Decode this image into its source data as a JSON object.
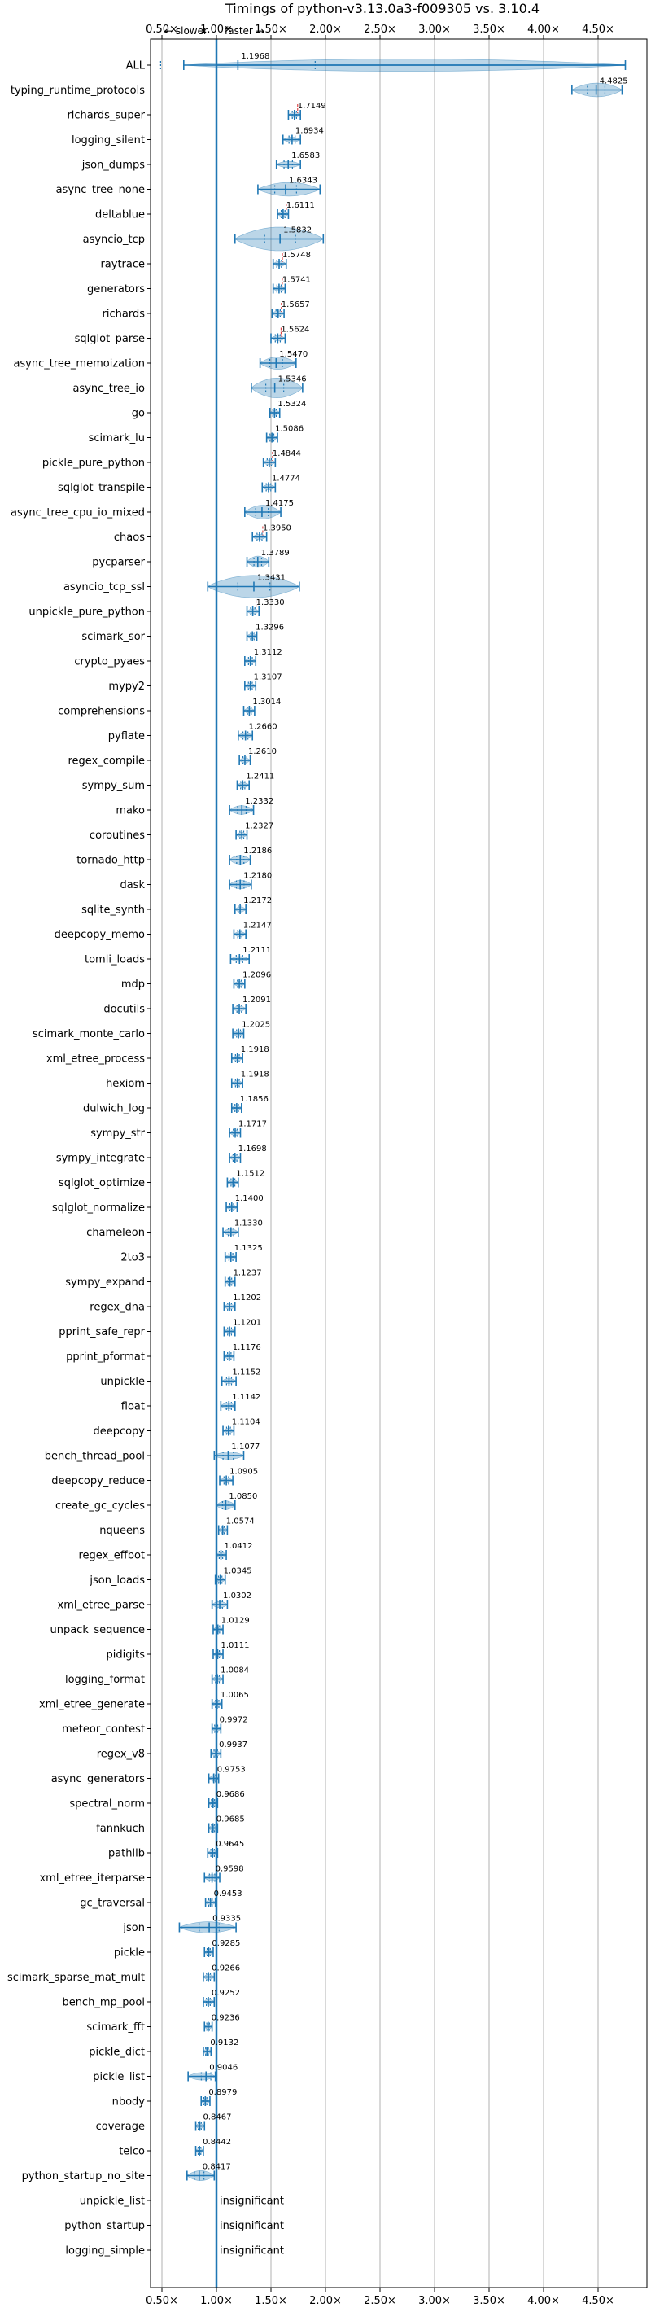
{
  "chart_data": {
    "type": "violin",
    "title": "Timings of python-v3.13.0a3-f009305 vs. 3.10.4",
    "direction_labels": {
      "slower": "← slower",
      "faster": "faster →"
    },
    "xlim": [
      0.5,
      4.75
    ],
    "xticks": [
      0.5,
      1.0,
      1.5,
      2.0,
      2.5,
      3.0,
      3.5,
      4.0,
      4.5
    ],
    "xtick_labels": [
      "0.50×",
      "1.00×",
      "1.50×",
      "2.00×",
      "2.50×",
      "3.00×",
      "3.50×",
      "4.00×",
      "4.50×"
    ],
    "grid": true,
    "reference_line": 1.0,
    "insignificant_label": "insignificant",
    "benchmarks": [
      {
        "name": "ALL",
        "value": "1.1968",
        "mean": 1.1968,
        "min": 0.7,
        "max": 4.75,
        "width": 0.5,
        "red": false
      },
      {
        "name": "typing_runtime_protocols",
        "value": "4.4825",
        "mean": 4.4825,
        "min": 4.26,
        "max": 4.72,
        "width": 0.55,
        "red": false
      },
      {
        "name": "richards_super",
        "value": "1.7149",
        "mean": 1.7149,
        "min": 1.66,
        "max": 1.77,
        "width": 0.2,
        "red": true
      },
      {
        "name": "logging_silent",
        "value": "1.6934",
        "mean": 1.6934,
        "min": 1.61,
        "max": 1.77,
        "width": 0.2,
        "red": false
      },
      {
        "name": "json_dumps",
        "value": "1.6583",
        "mean": 1.6583,
        "min": 1.55,
        "max": 1.77,
        "width": 0.25,
        "red": false
      },
      {
        "name": "async_tree_none",
        "value": "1.6343",
        "mean": 1.6343,
        "min": 1.38,
        "max": 1.95,
        "width": 0.55,
        "red": false
      },
      {
        "name": "deltablue",
        "value": "1.6111",
        "mean": 1.6111,
        "min": 1.56,
        "max": 1.66,
        "width": 0.2,
        "red": true
      },
      {
        "name": "asyncio_tcp",
        "value": "1.5832",
        "mean": 1.5832,
        "min": 1.17,
        "max": 1.98,
        "width": 0.95,
        "red": false
      },
      {
        "name": "raytrace",
        "value": "1.5748",
        "mean": 1.5748,
        "min": 1.52,
        "max": 1.64,
        "width": 0.2,
        "red": true
      },
      {
        "name": "generators",
        "value": "1.5741",
        "mean": 1.5741,
        "min": 1.52,
        "max": 1.63,
        "width": 0.2,
        "red": true
      },
      {
        "name": "richards",
        "value": "1.5657",
        "mean": 1.5657,
        "min": 1.51,
        "max": 1.62,
        "width": 0.2,
        "red": true
      },
      {
        "name": "sqlglot_parse",
        "value": "1.5624",
        "mean": 1.5624,
        "min": 1.5,
        "max": 1.63,
        "width": 0.2,
        "red": true
      },
      {
        "name": "async_tree_memoization",
        "value": "1.5470",
        "mean": 1.547,
        "min": 1.4,
        "max": 1.73,
        "width": 0.5,
        "red": false
      },
      {
        "name": "async_tree_io",
        "value": "1.5346",
        "mean": 1.5346,
        "min": 1.32,
        "max": 1.79,
        "width": 0.8,
        "red": false
      },
      {
        "name": "go",
        "value": "1.5324",
        "mean": 1.5324,
        "min": 1.49,
        "max": 1.58,
        "width": 0.2,
        "red": false
      },
      {
        "name": "scimark_lu",
        "value": "1.5086",
        "mean": 1.5086,
        "min": 1.46,
        "max": 1.56,
        "width": 0.2,
        "red": false
      },
      {
        "name": "pickle_pure_python",
        "value": "1.4844",
        "mean": 1.4844,
        "min": 1.43,
        "max": 1.54,
        "width": 0.2,
        "red": true
      },
      {
        "name": "sqlglot_transpile",
        "value": "1.4774",
        "mean": 1.4774,
        "min": 1.42,
        "max": 1.54,
        "width": 0.2,
        "red": false
      },
      {
        "name": "async_tree_cpu_io_mixed",
        "value": "1.4175",
        "mean": 1.4175,
        "min": 1.26,
        "max": 1.59,
        "width": 0.55,
        "red": false
      },
      {
        "name": "chaos",
        "value": "1.3950",
        "mean": 1.395,
        "min": 1.33,
        "max": 1.46,
        "width": 0.2,
        "red": true
      },
      {
        "name": "pycparser",
        "value": "1.3789",
        "mean": 1.3789,
        "min": 1.28,
        "max": 1.48,
        "width": 0.45,
        "red": false
      },
      {
        "name": "asyncio_tcp_ssl",
        "value": "1.3431",
        "mean": 1.3431,
        "min": 0.92,
        "max": 1.76,
        "width": 0.9,
        "red": false
      },
      {
        "name": "unpickle_pure_python",
        "value": "1.3330",
        "mean": 1.333,
        "min": 1.28,
        "max": 1.39,
        "width": 0.2,
        "red": true
      },
      {
        "name": "scimark_sor",
        "value": "1.3296",
        "mean": 1.3296,
        "min": 1.28,
        "max": 1.37,
        "width": 0.2,
        "red": false
      },
      {
        "name": "crypto_pyaes",
        "value": "1.3112",
        "mean": 1.3112,
        "min": 1.26,
        "max": 1.36,
        "width": 0.2,
        "red": false
      },
      {
        "name": "mypy2",
        "value": "1.3107",
        "mean": 1.3107,
        "min": 1.26,
        "max": 1.36,
        "width": 0.2,
        "red": false
      },
      {
        "name": "comprehensions",
        "value": "1.3014",
        "mean": 1.3014,
        "min": 1.25,
        "max": 1.35,
        "width": 0.2,
        "red": false
      },
      {
        "name": "pyflate",
        "value": "1.2660",
        "mean": 1.266,
        "min": 1.2,
        "max": 1.33,
        "width": 0.2,
        "red": false
      },
      {
        "name": "regex_compile",
        "value": "1.2610",
        "mean": 1.261,
        "min": 1.21,
        "max": 1.31,
        "width": 0.2,
        "red": false
      },
      {
        "name": "sympy_sum",
        "value": "1.2411",
        "mean": 1.2411,
        "min": 1.19,
        "max": 1.3,
        "width": 0.2,
        "red": false
      },
      {
        "name": "mako",
        "value": "1.2332",
        "mean": 1.2332,
        "min": 1.12,
        "max": 1.34,
        "width": 0.35,
        "red": false
      },
      {
        "name": "coroutines",
        "value": "1.2327",
        "mean": 1.2327,
        "min": 1.18,
        "max": 1.28,
        "width": 0.2,
        "red": false
      },
      {
        "name": "tornado_http",
        "value": "1.2186",
        "mean": 1.2186,
        "min": 1.12,
        "max": 1.31,
        "width": 0.35,
        "red": false
      },
      {
        "name": "dask",
        "value": "1.2180",
        "mean": 1.218,
        "min": 1.12,
        "max": 1.32,
        "width": 0.35,
        "red": false
      },
      {
        "name": "sqlite_synth",
        "value": "1.2172",
        "mean": 1.2172,
        "min": 1.17,
        "max": 1.27,
        "width": 0.2,
        "red": false
      },
      {
        "name": "deepcopy_memo",
        "value": "1.2147",
        "mean": 1.2147,
        "min": 1.16,
        "max": 1.27,
        "width": 0.2,
        "red": false
      },
      {
        "name": "tomli_loads",
        "value": "1.2111",
        "mean": 1.2111,
        "min": 1.13,
        "max": 1.3,
        "width": 0.2,
        "red": false
      },
      {
        "name": "mdp",
        "value": "1.2096",
        "mean": 1.2096,
        "min": 1.16,
        "max": 1.26,
        "width": 0.2,
        "red": false
      },
      {
        "name": "docutils",
        "value": "1.2091",
        "mean": 1.2091,
        "min": 1.15,
        "max": 1.27,
        "width": 0.2,
        "red": false
      },
      {
        "name": "scimark_monte_carlo",
        "value": "1.2025",
        "mean": 1.2025,
        "min": 1.15,
        "max": 1.25,
        "width": 0.2,
        "red": false
      },
      {
        "name": "xml_etree_process",
        "value": "1.1918",
        "mean": 1.1918,
        "min": 1.14,
        "max": 1.24,
        "width": 0.2,
        "red": false
      },
      {
        "name": "hexiom",
        "value": "1.1918",
        "mean": 1.1918,
        "min": 1.14,
        "max": 1.24,
        "width": 0.2,
        "red": false
      },
      {
        "name": "dulwich_log",
        "value": "1.1856",
        "mean": 1.1856,
        "min": 1.14,
        "max": 1.23,
        "width": 0.2,
        "red": false
      },
      {
        "name": "sympy_str",
        "value": "1.1717",
        "mean": 1.1717,
        "min": 1.12,
        "max": 1.22,
        "width": 0.2,
        "red": false
      },
      {
        "name": "sympy_integrate",
        "value": "1.1698",
        "mean": 1.1698,
        "min": 1.12,
        "max": 1.22,
        "width": 0.2,
        "red": false
      },
      {
        "name": "sqlglot_optimize",
        "value": "1.1512",
        "mean": 1.1512,
        "min": 1.1,
        "max": 1.2,
        "width": 0.2,
        "red": false
      },
      {
        "name": "sqlglot_normalize",
        "value": "1.1400",
        "mean": 1.14,
        "min": 1.09,
        "max": 1.19,
        "width": 0.2,
        "red": false
      },
      {
        "name": "chameleon",
        "value": "1.1330",
        "mean": 1.133,
        "min": 1.06,
        "max": 1.2,
        "width": 0.25,
        "red": false
      },
      {
        "name": "2to3",
        "value": "1.1325",
        "mean": 1.1325,
        "min": 1.08,
        "max": 1.18,
        "width": 0.2,
        "red": false
      },
      {
        "name": "sympy_expand",
        "value": "1.1237",
        "mean": 1.1237,
        "min": 1.08,
        "max": 1.17,
        "width": 0.2,
        "red": false
      },
      {
        "name": "regex_dna",
        "value": "1.1202",
        "mean": 1.1202,
        "min": 1.07,
        "max": 1.17,
        "width": 0.2,
        "red": false
      },
      {
        "name": "pprint_safe_repr",
        "value": "1.1201",
        "mean": 1.1201,
        "min": 1.07,
        "max": 1.17,
        "width": 0.2,
        "red": false
      },
      {
        "name": "pprint_pformat",
        "value": "1.1176",
        "mean": 1.1176,
        "min": 1.07,
        "max": 1.16,
        "width": 0.2,
        "red": false
      },
      {
        "name": "unpickle",
        "value": "1.1152",
        "mean": 1.1152,
        "min": 1.05,
        "max": 1.18,
        "width": 0.2,
        "red": false
      },
      {
        "name": "float",
        "value": "1.1142",
        "mean": 1.1142,
        "min": 1.04,
        "max": 1.17,
        "width": 0.25,
        "red": false
      },
      {
        "name": "deepcopy",
        "value": "1.1104",
        "mean": 1.1104,
        "min": 1.06,
        "max": 1.16,
        "width": 0.2,
        "red": false
      },
      {
        "name": "bench_thread_pool",
        "value": "1.1077",
        "mean": 1.1077,
        "min": 0.98,
        "max": 1.25,
        "width": 0.3,
        "red": false
      },
      {
        "name": "deepcopy_reduce",
        "value": "1.0905",
        "mean": 1.0905,
        "min": 1.03,
        "max": 1.15,
        "width": 0.2,
        "red": false
      },
      {
        "name": "create_gc_cycles",
        "value": "1.0850",
        "mean": 1.085,
        "min": 1.0,
        "max": 1.17,
        "width": 0.35,
        "red": false
      },
      {
        "name": "nqueens",
        "value": "1.0574",
        "mean": 1.0574,
        "min": 1.02,
        "max": 1.1,
        "width": 0.2,
        "red": false
      },
      {
        "name": "regex_effbot",
        "value": "1.0412",
        "mean": 1.0412,
        "min": 1.0,
        "max": 1.09,
        "width": 0.2,
        "red": false
      },
      {
        "name": "json_loads",
        "value": "1.0345",
        "mean": 1.0345,
        "min": 0.99,
        "max": 1.08,
        "width": 0.2,
        "red": false
      },
      {
        "name": "xml_etree_parse",
        "value": "1.0302",
        "mean": 1.0302,
        "min": 0.96,
        "max": 1.1,
        "width": 0.25,
        "red": false
      },
      {
        "name": "unpack_sequence",
        "value": "1.0129",
        "mean": 1.0129,
        "min": 0.97,
        "max": 1.06,
        "width": 0.2,
        "red": false
      },
      {
        "name": "pidigits",
        "value": "1.0111",
        "mean": 1.0111,
        "min": 0.97,
        "max": 1.06,
        "width": 0.2,
        "red": false
      },
      {
        "name": "logging_format",
        "value": "1.0084",
        "mean": 1.0084,
        "min": 0.96,
        "max": 1.06,
        "width": 0.2,
        "red": false
      },
      {
        "name": "xml_etree_generate",
        "value": "1.0065",
        "mean": 1.0065,
        "min": 0.96,
        "max": 1.05,
        "width": 0.2,
        "red": false
      },
      {
        "name": "meteor_contest",
        "value": "0.9972",
        "mean": 0.9972,
        "min": 0.96,
        "max": 1.04,
        "width": 0.2,
        "red": false
      },
      {
        "name": "regex_v8",
        "value": "0.9937",
        "mean": 0.9937,
        "min": 0.95,
        "max": 1.04,
        "width": 0.2,
        "red": false
      },
      {
        "name": "async_generators",
        "value": "0.9753",
        "mean": 0.9753,
        "min": 0.93,
        "max": 1.02,
        "width": 0.2,
        "red": false
      },
      {
        "name": "spectral_norm",
        "value": "0.9686",
        "mean": 0.9686,
        "min": 0.93,
        "max": 1.01,
        "width": 0.2,
        "red": false
      },
      {
        "name": "fannkuch",
        "value": "0.9685",
        "mean": 0.9685,
        "min": 0.93,
        "max": 1.01,
        "width": 0.2,
        "red": false
      },
      {
        "name": "pathlib",
        "value": "0.9645",
        "mean": 0.9645,
        "min": 0.92,
        "max": 1.01,
        "width": 0.2,
        "red": false
      },
      {
        "name": "xml_etree_iterparse",
        "value": "0.9598",
        "mean": 0.9598,
        "min": 0.89,
        "max": 1.03,
        "width": 0.25,
        "red": false
      },
      {
        "name": "gc_traversal",
        "value": "0.9453",
        "mean": 0.9453,
        "min": 0.9,
        "max": 0.99,
        "width": 0.2,
        "red": false
      },
      {
        "name": "json",
        "value": "0.9335",
        "mean": 0.9335,
        "min": 0.66,
        "max": 1.18,
        "width": 0.45,
        "red": false
      },
      {
        "name": "pickle",
        "value": "0.9285",
        "mean": 0.9285,
        "min": 0.89,
        "max": 0.97,
        "width": 0.2,
        "red": false
      },
      {
        "name": "scimark_sparse_mat_mult",
        "value": "0.9266",
        "mean": 0.9266,
        "min": 0.88,
        "max": 0.98,
        "width": 0.2,
        "red": false
      },
      {
        "name": "bench_mp_pool",
        "value": "0.9252",
        "mean": 0.9252,
        "min": 0.88,
        "max": 0.98,
        "width": 0.2,
        "red": false
      },
      {
        "name": "scimark_fft",
        "value": "0.9236",
        "mean": 0.9236,
        "min": 0.89,
        "max": 0.96,
        "width": 0.2,
        "red": false
      },
      {
        "name": "pickle_dict",
        "value": "0.9132",
        "mean": 0.9132,
        "min": 0.88,
        "max": 0.95,
        "width": 0.2,
        "red": false
      },
      {
        "name": "pickle_list",
        "value": "0.9046",
        "mean": 0.9046,
        "min": 0.74,
        "max": 0.99,
        "width": 0.3,
        "red": false
      },
      {
        "name": "nbody",
        "value": "0.8979",
        "mean": 0.8979,
        "min": 0.86,
        "max": 0.94,
        "width": 0.2,
        "red": false
      },
      {
        "name": "coverage",
        "value": "0.8467",
        "mean": 0.8467,
        "min": 0.81,
        "max": 0.89,
        "width": 0.2,
        "red": false
      },
      {
        "name": "telco",
        "value": "0.8442",
        "mean": 0.8442,
        "min": 0.81,
        "max": 0.88,
        "width": 0.2,
        "red": false
      },
      {
        "name": "python_startup_no_site",
        "value": "0.8417",
        "mean": 0.8417,
        "min": 0.73,
        "max": 0.98,
        "width": 0.4,
        "red": false
      },
      {
        "name": "unpickle_list",
        "value": "insignificant",
        "mean": null,
        "min": null,
        "max": null,
        "width": 0,
        "red": false
      },
      {
        "name": "python_startup",
        "value": "insignificant",
        "mean": null,
        "min": null,
        "max": null,
        "width": 0,
        "red": false
      },
      {
        "name": "logging_simple",
        "value": "insignificant",
        "mean": null,
        "min": null,
        "max": null,
        "width": 0,
        "red": false
      }
    ]
  }
}
